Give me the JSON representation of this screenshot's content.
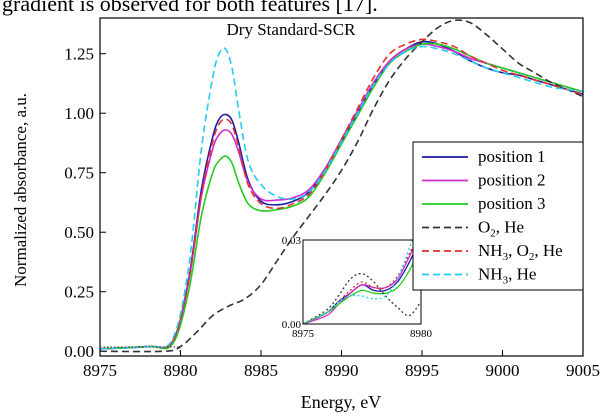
{
  "page_text": "gradient is observed for both features [17].",
  "chart_data": {
    "type": "line",
    "title": "Dry Standard-SCR",
    "xlabel": "Energy, eV",
    "ylabel": "Normalized absorbance, a.u.",
    "xlim": [
      8975,
      9005
    ],
    "ylim": [
      -0.02,
      1.4
    ],
    "xticks": [
      "8975",
      "8980",
      "8985",
      "8990",
      "8995",
      "9000",
      "9005"
    ],
    "yticks": [
      "0.00",
      "0.25",
      "0.50",
      "0.75",
      "1.00",
      "1.25"
    ],
    "legend_position": "right",
    "series": [
      {
        "name": "position 1",
        "color": "#1a1aa6",
        "dash": "solid",
        "x": [
          8975,
          8978,
          8979.5,
          8980.5,
          8981.3,
          8982,
          8982.4,
          8982.8,
          8983.2,
          8983.6,
          8984.2,
          8985,
          8986,
          8987,
          8988,
          8989,
          8990,
          8991,
          8992,
          8993,
          8994,
          8995,
          8996,
          8997,
          8998,
          8999,
          9000,
          9001,
          9002,
          9003,
          9004,
          9005
        ],
        "y": [
          0.01,
          0.02,
          0.04,
          0.3,
          0.68,
          0.9,
          0.975,
          0.995,
          0.97,
          0.88,
          0.72,
          0.63,
          0.615,
          0.63,
          0.67,
          0.76,
          0.88,
          1.0,
          1.12,
          1.22,
          1.27,
          1.3,
          1.29,
          1.26,
          1.22,
          1.19,
          1.17,
          1.16,
          1.14,
          1.12,
          1.1,
          1.08
        ]
      },
      {
        "name": "position 2",
        "color": "#d02ad0",
        "dash": "solid",
        "x": [
          8975,
          8978,
          8979.5,
          8980.5,
          8981.3,
          8982,
          8982.4,
          8982.8,
          8983.2,
          8983.6,
          8984.2,
          8985,
          8986,
          8987,
          8988,
          8989,
          8990,
          8991,
          8992,
          8993,
          8994,
          8995,
          8996,
          8997,
          8998,
          8999,
          9000,
          9001,
          9002,
          9003,
          9004,
          9005
        ],
        "y": [
          0.01,
          0.02,
          0.04,
          0.29,
          0.65,
          0.85,
          0.91,
          0.93,
          0.91,
          0.84,
          0.71,
          0.64,
          0.635,
          0.645,
          0.68,
          0.77,
          0.89,
          1.01,
          1.13,
          1.22,
          1.27,
          1.29,
          1.28,
          1.26,
          1.23,
          1.21,
          1.19,
          1.17,
          1.15,
          1.13,
          1.11,
          1.09
        ]
      },
      {
        "name": "position 3",
        "color": "#22cc22",
        "dash": "solid",
        "x": [
          8975,
          8978,
          8979.5,
          8980.5,
          8981.3,
          8982,
          8982.4,
          8982.8,
          8983.2,
          8983.6,
          8984.2,
          8985,
          8986,
          8987,
          8988,
          8989,
          8990,
          8991,
          8992,
          8993,
          8994,
          8995,
          8996,
          8997,
          8998,
          8999,
          9000,
          9001,
          9002,
          9003,
          9004,
          9005
        ],
        "y": [
          0.01,
          0.02,
          0.03,
          0.25,
          0.57,
          0.75,
          0.8,
          0.82,
          0.79,
          0.71,
          0.62,
          0.59,
          0.595,
          0.61,
          0.65,
          0.75,
          0.87,
          0.99,
          1.11,
          1.21,
          1.26,
          1.29,
          1.29,
          1.27,
          1.24,
          1.21,
          1.19,
          1.17,
          1.15,
          1.13,
          1.11,
          1.09
        ]
      },
      {
        "name": "O<sub>2</sub>, He",
        "label_main": "O",
        "label_sub": "2",
        "label_rest": ", He",
        "color": "#333333",
        "dash": "dashed",
        "x": [
          8975,
          8979,
          8980,
          8981,
          8982,
          8983,
          8984,
          8985,
          8986,
          8987,
          8988,
          8989,
          8990,
          8991,
          8992,
          8993,
          8994,
          8995,
          8996,
          8997,
          8998,
          8999,
          9000,
          9001,
          9002,
          9003,
          9004,
          9005
        ],
        "y": [
          0.0,
          0.0,
          0.02,
          0.08,
          0.15,
          0.19,
          0.22,
          0.28,
          0.38,
          0.48,
          0.57,
          0.66,
          0.76,
          0.88,
          1.02,
          1.14,
          1.23,
          1.3,
          1.36,
          1.39,
          1.38,
          1.33,
          1.27,
          1.21,
          1.17,
          1.13,
          1.1,
          1.07
        ]
      },
      {
        "name": "NH3, O2, He",
        "label_main": "NH",
        "label_sub": "3",
        "label_rest": ", O",
        "label_sub2": "2",
        "label_rest2": ", He",
        "color": "#e0302a",
        "dash": "dashed",
        "x": [
          8975,
          8978,
          8979.5,
          8980.5,
          8981.3,
          8982,
          8982.4,
          8982.8,
          8983.2,
          8983.6,
          8984.2,
          8985,
          8986,
          8987,
          8988,
          8989,
          8990,
          8991,
          8992,
          8993,
          8994,
          8995,
          8996,
          8997,
          8998,
          8999,
          9000,
          9001,
          9002,
          9003,
          9004,
          9005
        ],
        "y": [
          0.01,
          0.02,
          0.04,
          0.29,
          0.66,
          0.88,
          0.955,
          0.975,
          0.95,
          0.86,
          0.7,
          0.62,
          0.6,
          0.62,
          0.66,
          0.76,
          0.89,
          1.02,
          1.15,
          1.25,
          1.29,
          1.31,
          1.3,
          1.28,
          1.24,
          1.21,
          1.18,
          1.16,
          1.14,
          1.12,
          1.1,
          1.08
        ]
      },
      {
        "name": "NH3, He",
        "label_main": "NH",
        "label_sub": "3",
        "label_rest": ", He",
        "color": "#22ccee",
        "dash": "dashed",
        "x": [
          8975,
          8978,
          8979.5,
          8980.5,
          8981.3,
          8982,
          8982.4,
          8982.8,
          8983.2,
          8983.6,
          8984.2,
          8985,
          8986,
          8987,
          8988,
          8989,
          8990,
          8991,
          8992,
          8993,
          8994,
          8995,
          8996,
          8997,
          8998,
          8999,
          9000,
          9001,
          9002,
          9003,
          9004,
          9005
        ],
        "y": [
          0.01,
          0.02,
          0.05,
          0.35,
          0.85,
          1.15,
          1.25,
          1.27,
          1.19,
          1.02,
          0.8,
          0.7,
          0.65,
          0.64,
          0.67,
          0.76,
          0.88,
          1.0,
          1.12,
          1.21,
          1.26,
          1.28,
          1.27,
          1.25,
          1.22,
          1.19,
          1.17,
          1.15,
          1.13,
          1.11,
          1.1,
          1.09
        ]
      }
    ],
    "inset": {
      "xlim": [
        8975,
        8980
      ],
      "ylim": [
        0.0,
        0.03
      ],
      "xticks": [
        "8975",
        "8980"
      ],
      "yticks": [
        "0.00",
        "0.03"
      ],
      "series": [
        {
          "color": "#1a1aa6",
          "dash": "solid",
          "x": [
            8975,
            8976,
            8976.5,
            8977,
            8977.5,
            8978,
            8978.5,
            8979,
            8979.5,
            8980
          ],
          "y": [
            0.0,
            0.004,
            0.008,
            0.011,
            0.014,
            0.012,
            0.012,
            0.015,
            0.022,
            0.031
          ]
        },
        {
          "color": "#d02ad0",
          "dash": "solid",
          "x": [
            8975,
            8976,
            8976.5,
            8977,
            8977.5,
            8978,
            8978.5,
            8979,
            8979.5,
            8980
          ],
          "y": [
            0.0,
            0.003,
            0.007,
            0.011,
            0.014,
            0.013,
            0.013,
            0.016,
            0.024,
            0.033
          ]
        },
        {
          "color": "#22cc22",
          "dash": "solid",
          "x": [
            8975,
            8976,
            8976.5,
            8977,
            8977.5,
            8978,
            8978.5,
            8979,
            8979.5,
            8980
          ],
          "y": [
            0.0,
            0.004,
            0.007,
            0.01,
            0.012,
            0.011,
            0.011,
            0.013,
            0.019,
            0.028
          ]
        },
        {
          "color": "#333333",
          "dash": "dotted",
          "x": [
            8975,
            8976,
            8976.5,
            8977,
            8977.5,
            8978,
            8978.5,
            8979,
            8979.5,
            8980
          ],
          "y": [
            0.0,
            0.005,
            0.01,
            0.016,
            0.018,
            0.015,
            0.01,
            0.006,
            0.003,
            0.008
          ]
        },
        {
          "color": "#e0302a",
          "dash": "dotted",
          "x": [
            8975,
            8976,
            8976.5,
            8977,
            8977.5,
            8978,
            8978.5,
            8979,
            8979.5,
            8980
          ],
          "y": [
            0.0,
            0.004,
            0.008,
            0.012,
            0.015,
            0.013,
            0.013,
            0.017,
            0.025,
            0.034
          ]
        },
        {
          "color": "#22ccee",
          "dash": "dotted",
          "x": [
            8975,
            8976,
            8976.5,
            8977,
            8977.5,
            8978,
            8978.5,
            8979,
            8979.5,
            8980
          ],
          "y": [
            0.0,
            0.004,
            0.008,
            0.01,
            0.01,
            0.009,
            0.01,
            0.016,
            0.027,
            0.04
          ]
        }
      ]
    }
  }
}
